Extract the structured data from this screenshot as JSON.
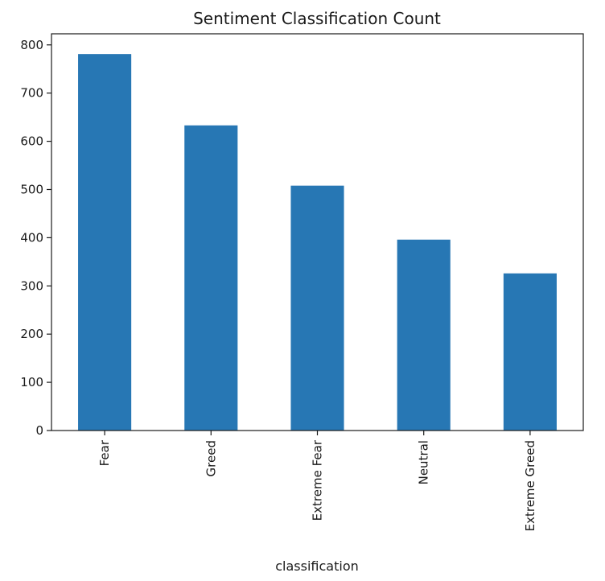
{
  "chart_data": {
    "type": "bar",
    "title": "Sentiment Classification Count",
    "xlabel": "classification",
    "ylabel": "",
    "categories": [
      "Fear",
      "Greed",
      "Extreme Fear",
      "Neutral",
      "Extreme Greed"
    ],
    "values": [
      781,
      633,
      508,
      396,
      326
    ],
    "ylim": [
      0,
      823
    ],
    "yticks": [
      0,
      100,
      200,
      300,
      400,
      500,
      600,
      700,
      800
    ],
    "bar_color": "#2777b4",
    "grid": false,
    "legend": "none"
  }
}
